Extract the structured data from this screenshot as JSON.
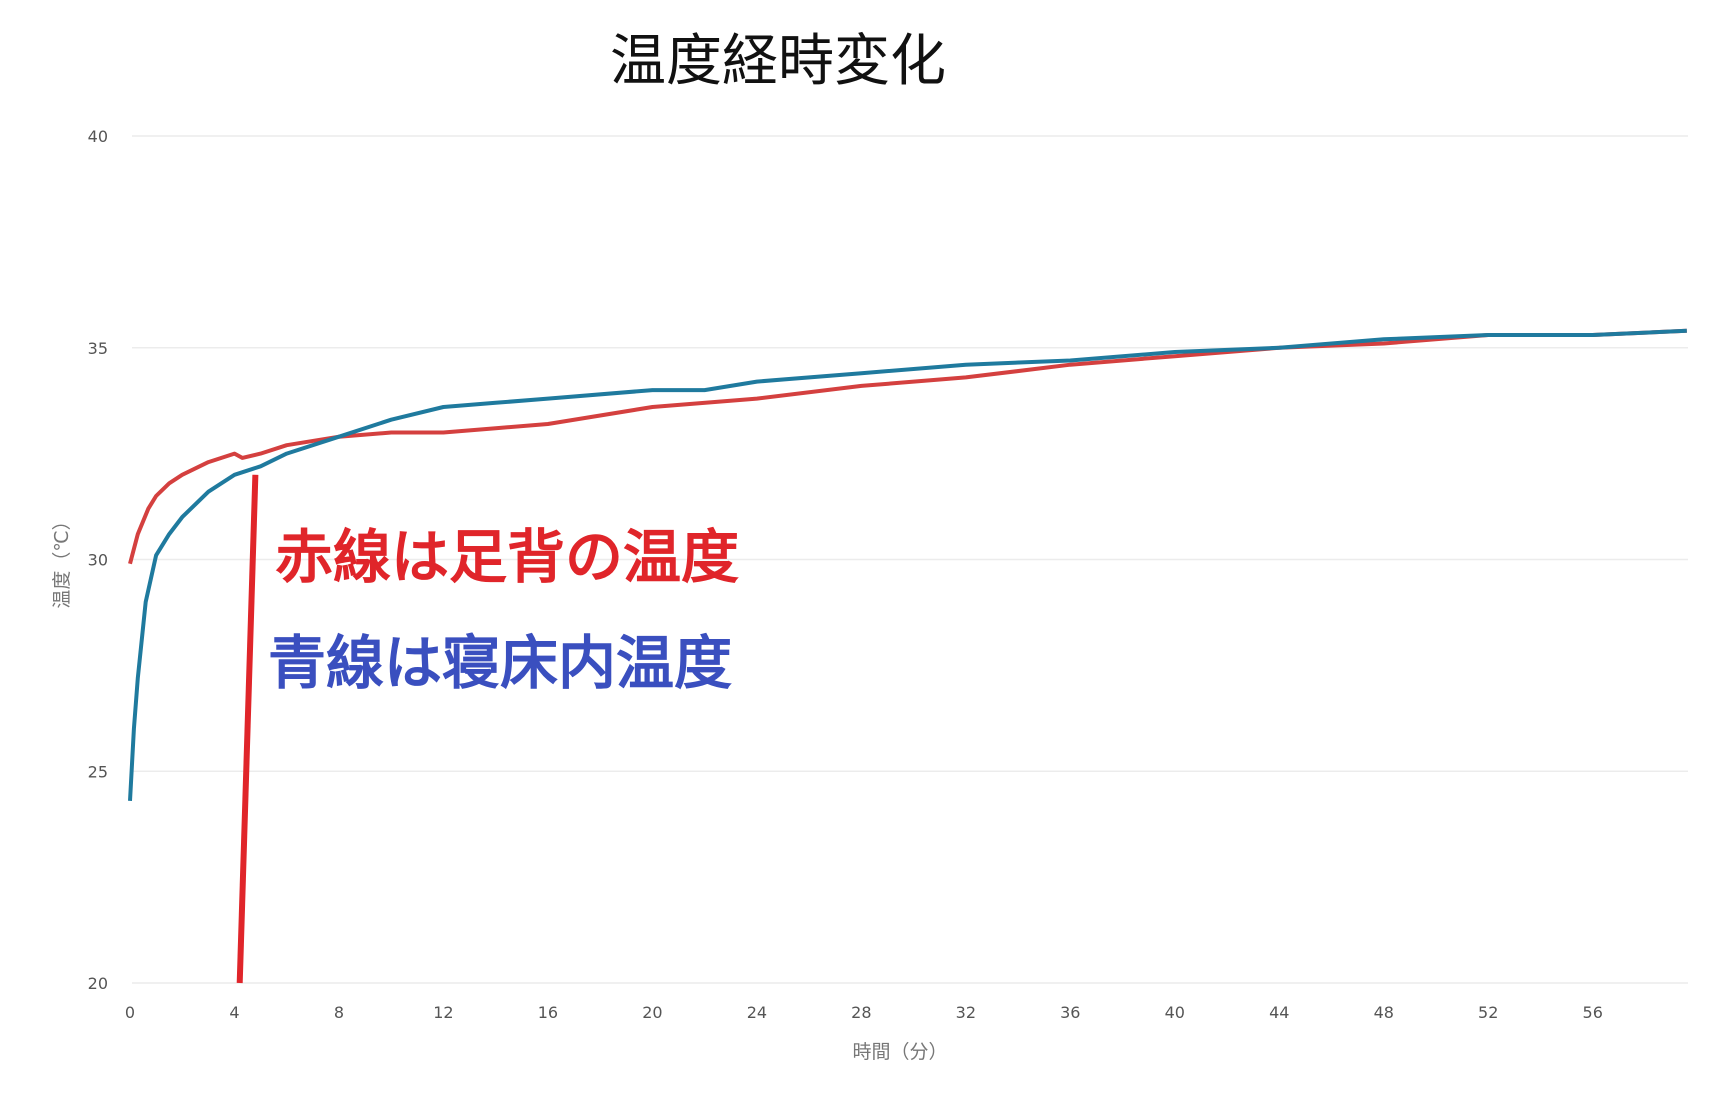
{
  "chart_data": {
    "type": "line",
    "title": "温度経時変化",
    "xlabel": "時間（分）",
    "ylabel": "温度（℃）",
    "xlim": [
      0,
      59.6
    ],
    "ylim": [
      20,
      40
    ],
    "xticks": [
      0,
      4,
      8,
      12,
      16,
      20,
      24,
      28,
      32,
      36,
      40,
      44,
      48,
      52,
      56
    ],
    "yticks": [
      20,
      25,
      30,
      35,
      40
    ],
    "grid": true,
    "series": [
      {
        "color": "#d4403f",
        "x": [
          0,
          0.3,
          0.7,
          1,
          1.5,
          2,
          3,
          4,
          4.3,
          5,
          6,
          8,
          10,
          12,
          14,
          16,
          20,
          24,
          28,
          32,
          36,
          40,
          44,
          48,
          52,
          56,
          59.6
        ],
        "y": [
          29.9,
          30.6,
          31.2,
          31.5,
          31.8,
          32.0,
          32.3,
          32.5,
          32.4,
          32.5,
          32.7,
          32.9,
          33.0,
          33.0,
          33.1,
          33.2,
          33.6,
          33.8,
          34.1,
          34.3,
          34.6,
          34.8,
          35.0,
          35.1,
          35.3,
          35.3,
          35.4
        ]
      },
      {
        "color": "#1f7a9e",
        "x": [
          0,
          0.15,
          0.3,
          0.6,
          1,
          1.5,
          2,
          3,
          4,
          5,
          6,
          8,
          10,
          12,
          14,
          16,
          20,
          22,
          24,
          28,
          32,
          36,
          40,
          44,
          48,
          52,
          56,
          59.6
        ],
        "y": [
          24.3,
          26.0,
          27.2,
          29.0,
          30.1,
          30.6,
          31.0,
          31.6,
          32.0,
          32.2,
          32.5,
          32.9,
          33.3,
          33.6,
          33.7,
          33.8,
          34.0,
          34.0,
          34.2,
          34.4,
          34.6,
          34.7,
          34.9,
          35.0,
          35.2,
          35.3,
          35.3,
          35.4
        ]
      }
    ],
    "annotations": [
      {
        "text": "赤線は足背の温度",
        "color": "#e0252a"
      },
      {
        "text": "青線は寝床内温度",
        "color": "#3a4fbf"
      }
    ],
    "marker_line": {
      "color": "#e0252a",
      "x_from": 4.2,
      "y_from": 20,
      "x_to": 4.8,
      "y_to": 32.0
    }
  }
}
